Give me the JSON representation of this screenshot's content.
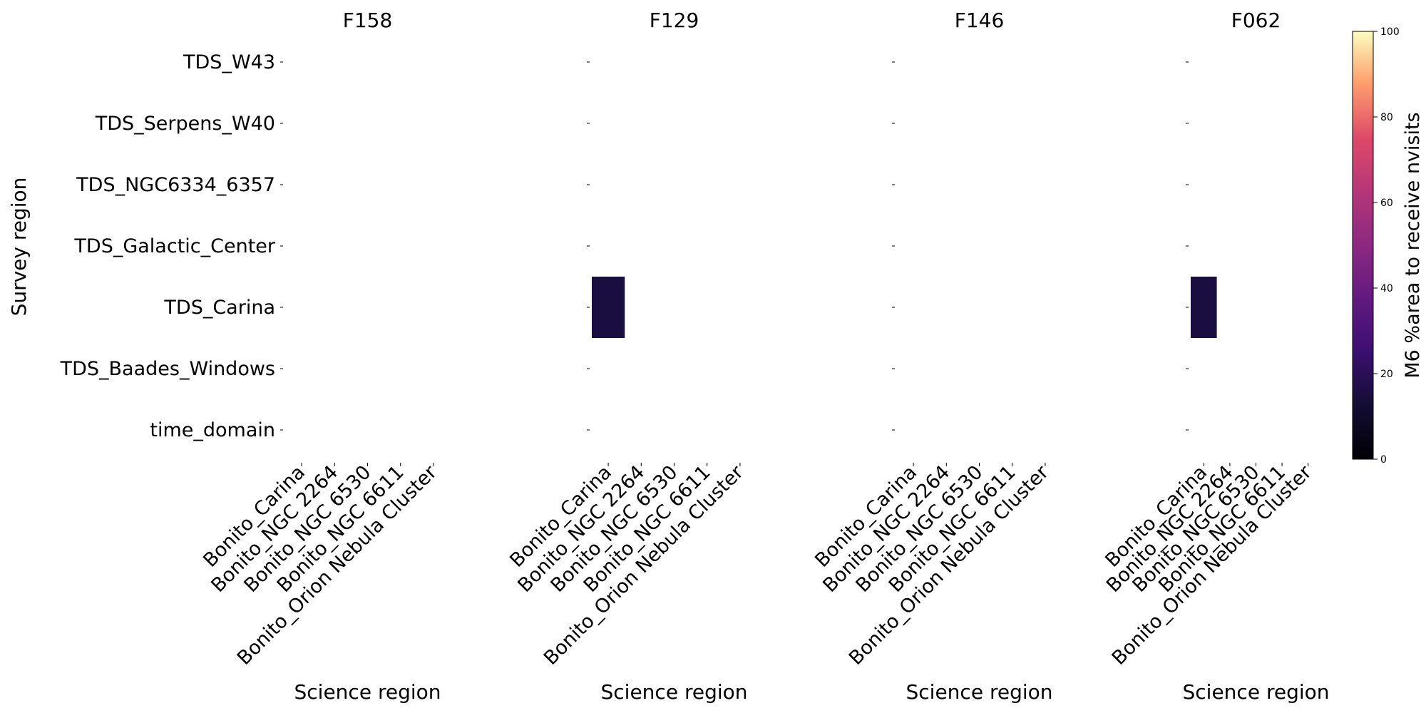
{
  "chart_data": {
    "type": "heatmap",
    "ylabel": "Survey region",
    "rows": [
      "TDS_W43",
      "TDS_Serpens_W40",
      "TDS_NGC6334_6357",
      "TDS_Galactic_Center",
      "TDS_Carina",
      "TDS_Baades_Windows",
      "time_domain"
    ],
    "columns": [
      "Bonito_Carina",
      "Bonito_NGC 2264",
      "Bonito_NGC 6530",
      "Bonito_NGC 6611",
      "Bonito_Orion Nebula Cluster"
    ],
    "panels": [
      {
        "title": "F158",
        "xlabel": "Science region",
        "cells": []
      },
      {
        "title": "F129",
        "xlabel": "Science region",
        "cells": [
          {
            "row": "TDS_Carina",
            "column": "Bonito_Carina",
            "value": 15
          }
        ]
      },
      {
        "title": "F146",
        "xlabel": "Science region",
        "cells": []
      },
      {
        "title": "F062",
        "xlabel": "Science region",
        "cells": [
          {
            "row": "TDS_Carina",
            "column": "Bonito_Carina",
            "value": 15
          }
        ]
      }
    ],
    "colorbar": {
      "label": "M6 %area to receive nvisits",
      "colormap": "magma",
      "range": [
        0,
        100
      ],
      "ticks": [
        "0",
        "20",
        "40",
        "60",
        "80",
        "100"
      ]
    }
  }
}
